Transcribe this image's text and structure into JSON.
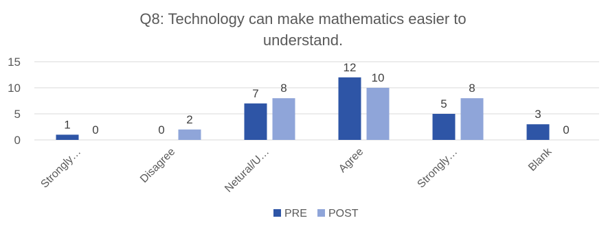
{
  "chart_data": {
    "type": "bar",
    "title": "Q8: Technology can make mathematics easier to understand.",
    "title_lines": [
      "Q8: Technology can make mathematics easier to",
      "understand."
    ],
    "categories": [
      "Strongly…",
      "Disagree",
      "Netural/U…",
      "Agree",
      "Strongly…",
      "Blank"
    ],
    "series": [
      {
        "name": "PRE",
        "values": [
          1,
          0,
          7,
          12,
          5,
          3
        ],
        "color": "#2e55a6"
      },
      {
        "name": "POST",
        "values": [
          0,
          2,
          8,
          10,
          8,
          0
        ],
        "color": "#8fa5d9"
      }
    ],
    "yticks": [
      0,
      5,
      10,
      15
    ],
    "ylim": [
      0,
      15
    ],
    "grid": true,
    "legend_position": "bottom",
    "xlabel": "",
    "ylabel": ""
  }
}
